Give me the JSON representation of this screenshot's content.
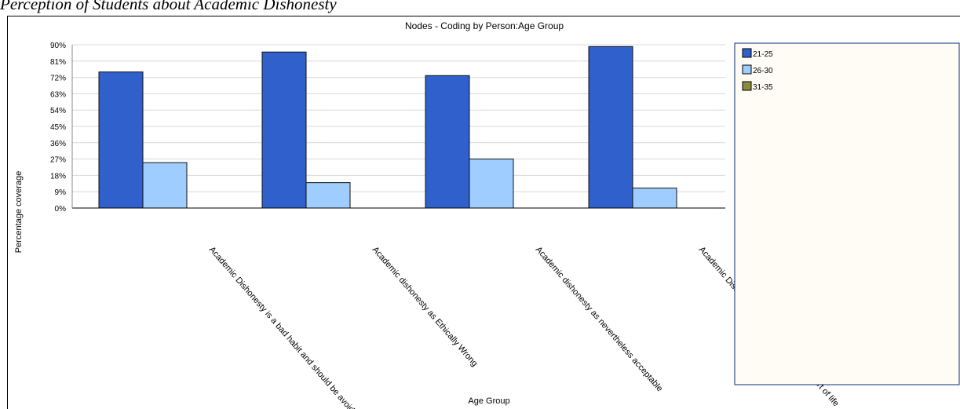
{
  "caption": "Perception of Students about Academic Dishonesty",
  "chart_data": {
    "type": "bar",
    "title": "Nodes - Coding by Person:Age Group",
    "xlabel": "Age Group",
    "ylabel": "Percentage coverage",
    "ylim": [
      0,
      90
    ],
    "yticks": [
      "0%",
      "9%",
      "18%",
      "27%",
      "36%",
      "45%",
      "54%",
      "63%",
      "72%",
      "81%",
      "90%"
    ],
    "categories": [
      "Academic Dishonesty is a bad habit and should be avoided",
      "Academic dishonesty as Ethically Wrong",
      "Academic dishonesty as nevertheless acceptable",
      "Academic Dishonesty considered as normal part of life"
    ],
    "series": [
      {
        "name": "21-25",
        "color": "#3060cc",
        "values": [
          75,
          86,
          73,
          89
        ]
      },
      {
        "name": "26-30",
        "color": "#9fcdff",
        "values": [
          25,
          14,
          27,
          11
        ]
      },
      {
        "name": "31-35",
        "color": "#8c8a3c",
        "values": [
          0,
          0,
          0,
          0
        ]
      }
    ],
    "grid": true,
    "legend": "right"
  }
}
